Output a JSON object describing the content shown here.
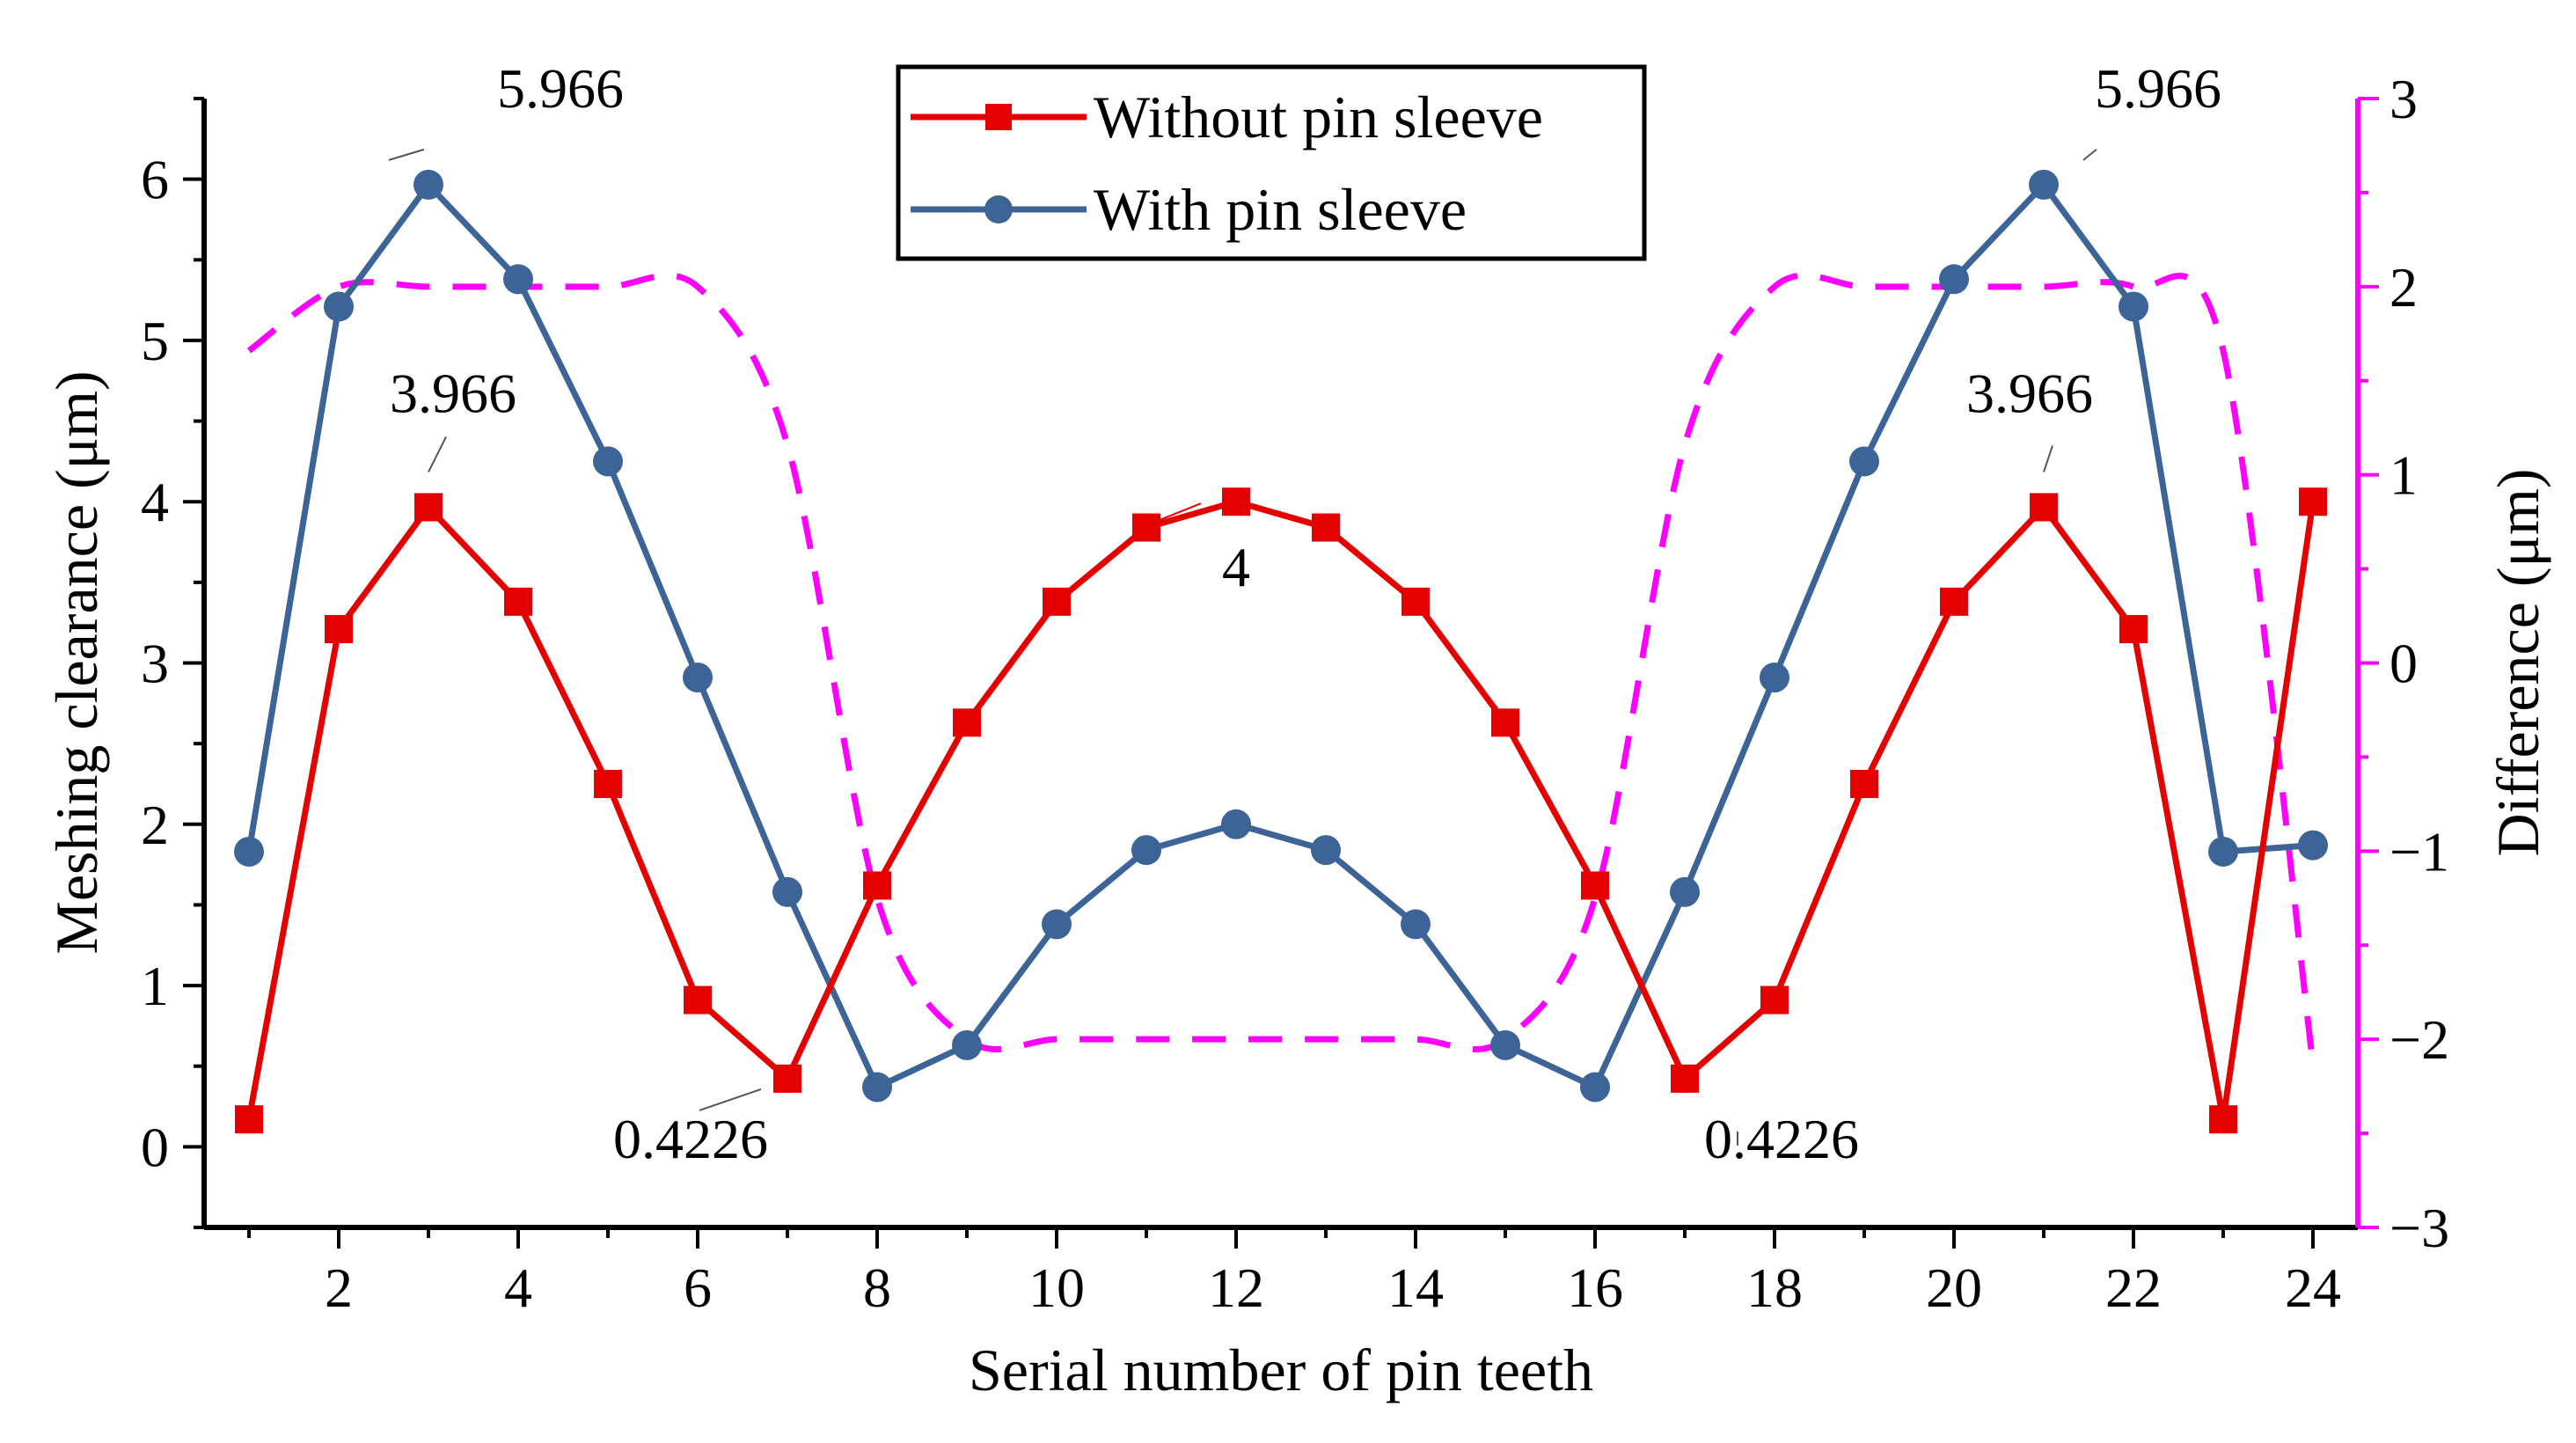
{
  "chart_data": {
    "type": "line",
    "xlabel": "Serial number of pin teeth",
    "ylabel": "Meshing clearance (μm)",
    "y2label": "Difference (μm)",
    "xlim": [
      0.5,
      24.5
    ],
    "ylim": [
      -0.5,
      6.5
    ],
    "y2lim": [
      -3,
      3
    ],
    "x_ticks": [
      2,
      4,
      6,
      8,
      10,
      12,
      14,
      16,
      18,
      20,
      22,
      24
    ],
    "y_ticks": [
      0,
      1,
      2,
      3,
      4,
      5,
      6
    ],
    "y2_ticks": [
      -3,
      -2,
      -1,
      0,
      1,
      2,
      3
    ],
    "y2_tick_labels": [
      "−3",
      "−2",
      "−1",
      "0",
      "1",
      "2",
      "3"
    ],
    "x": [
      1,
      2,
      3,
      4,
      5,
      6,
      7,
      8,
      9,
      10,
      11,
      12,
      13,
      14,
      15,
      16,
      17,
      18,
      19,
      20,
      21,
      22,
      23,
      24
    ],
    "series": [
      {
        "name": "Without pin sleeve",
        "color": "#e50000",
        "marker": "square",
        "axis": "left",
        "values": [
          0.17,
          3.21,
          3.966,
          3.38,
          2.25,
          0.91,
          0.4226,
          1.62,
          2.63,
          3.38,
          3.84,
          4.0,
          3.84,
          3.38,
          2.63,
          1.62,
          0.4226,
          0.91,
          2.25,
          3.38,
          3.966,
          3.21,
          0.17,
          4.0
        ]
      },
      {
        "name": "With pin sleeve",
        "color": "#3c6496",
        "marker": "circle",
        "axis": "left",
        "values": [
          1.83,
          5.21,
          5.966,
          5.38,
          4.25,
          2.91,
          1.58,
          0.37,
          0.63,
          1.38,
          1.84,
          2.0,
          1.84,
          1.38,
          0.63,
          0.37,
          1.58,
          2.91,
          4.25,
          5.38,
          5.966,
          5.21,
          1.83,
          1.87
        ]
      },
      {
        "name": "Difference",
        "color": "#ff00ff",
        "style": "dashed",
        "axis": "right",
        "values": [
          1.66,
          2.0,
          2.0,
          2.0,
          2.0,
          2.0,
          1.16,
          -1.25,
          -2.0,
          -2.0,
          -2.0,
          -2.0,
          -2.0,
          -2.0,
          -2.0,
          -1.25,
          1.16,
          2.0,
          2.0,
          2.0,
          2.0,
          2.0,
          1.66,
          -2.13
        ]
      }
    ],
    "annotations": [
      {
        "text": "5.966",
        "x": 3,
        "y": 5.966
      },
      {
        "text": "3.966",
        "x": 3,
        "y": 3.966
      },
      {
        "text": "0.4226",
        "x": 7,
        "y": 0.4226
      },
      {
        "text": "4",
        "x": 12,
        "y": 4.0
      },
      {
        "text": "0.4226",
        "x": 17,
        "y": 0.4226
      },
      {
        "text": "3.966",
        "x": 21,
        "y": 3.966
      },
      {
        "text": "5.966",
        "x": 21,
        "y": 5.966
      }
    ],
    "legend": {
      "position": "top-center",
      "entries": [
        "Without pin sleeve",
        "With pin sleeve"
      ]
    }
  }
}
